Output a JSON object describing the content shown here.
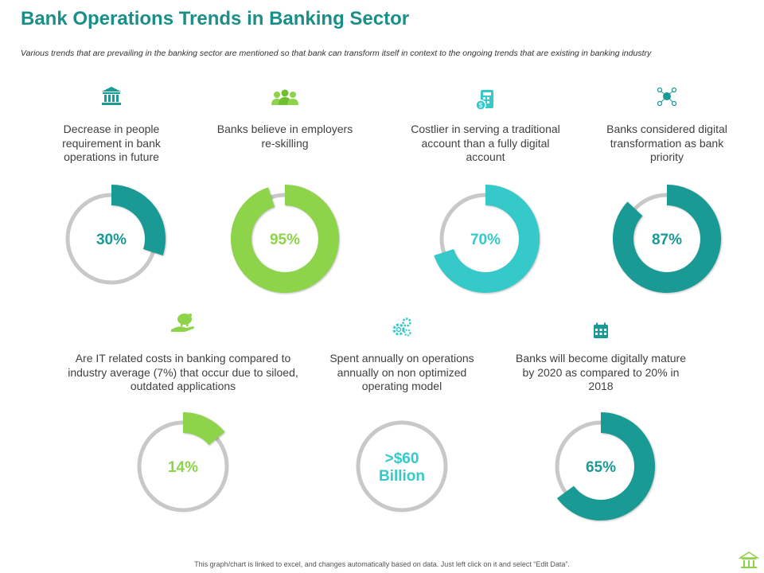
{
  "header": {
    "title": "Bank Operations Trends in Banking Sector",
    "subtitle": "Various trends that are prevailing in the banking sector are mentioned so that bank can transform itself in context to the ongoing trends that are existing in banking industry"
  },
  "colors": {
    "teal": "#1a9a94",
    "green": "#8dd44a",
    "cyan": "#35c9c9",
    "track": "#c8c8c8",
    "title": "#1a8f8a"
  },
  "cards": [
    {
      "icon": "bank-icon",
      "text": "Decrease in people requirement in bank operations in future",
      "label": "30%",
      "color": "#1a9a94"
    },
    {
      "icon": "people-icon",
      "text": "Banks believe in employers re-skilling",
      "label": "95%",
      "color": "#8dd44a"
    },
    {
      "icon": "calculator-icon",
      "text": "Costlier in serving a traditional account than a fully digital account",
      "label": "70%",
      "color": "#35c9c9"
    },
    {
      "icon": "network-icon",
      "text": "Banks considered digital transformation as bank priority",
      "label": "87%",
      "color": "#1a9a94"
    },
    {
      "icon": "piggy-bank-icon",
      "text": "Are IT related costs in banking compared to industry average (7%) that occur due to siloed, outdated applications",
      "label": "14%",
      "color": "#8dd44a"
    },
    {
      "icon": "gears-icon",
      "text": "Spent annually on operations annually on non optimized operating model",
      "label": ">$60\nBillion",
      "color": "#35c9c9"
    },
    {
      "icon": "calendar-icon",
      "text": "Banks will become digitally mature by 2020 as compared to 20% in 2018",
      "label": "65%",
      "color": "#1a9a94"
    }
  ],
  "chart_data": [
    {
      "type": "pie",
      "values": [
        30,
        70
      ],
      "center_label": "30%"
    },
    {
      "type": "pie",
      "values": [
        95,
        5
      ],
      "center_label": "95%"
    },
    {
      "type": "pie",
      "values": [
        70,
        30
      ],
      "center_label": "70%"
    },
    {
      "type": "pie",
      "values": [
        87,
        13
      ],
      "center_label": "87%"
    },
    {
      "type": "pie",
      "values": [
        14,
        86
      ],
      "center_label": "14%"
    },
    {
      "type": "pie",
      "values": [
        0,
        100
      ],
      "center_label": ">$60 Billion"
    },
    {
      "type": "pie",
      "values": [
        65,
        35
      ],
      "center_label": "65%"
    }
  ],
  "footer": {
    "note": "This graph/chart is linked to excel, and changes automatically based on data. Just left click on it and select “Edit Data”."
  }
}
